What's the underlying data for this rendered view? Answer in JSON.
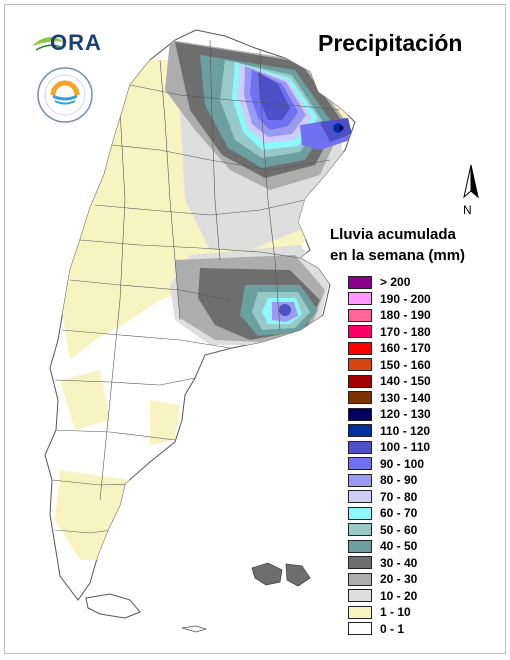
{
  "title": "Precipitación",
  "logo": {
    "text": "ORA",
    "icon": "ora-leaf-logo"
  },
  "seal": {
    "icon": "institute-seal-icon"
  },
  "north_arrow": {
    "label": "N",
    "icon": "north-arrow-icon"
  },
  "legend": {
    "title_line1": "Lluvia acumulada",
    "title_line2": "en la semana (mm)",
    "items": [
      {
        "label": "> 200",
        "color": "#8b008b"
      },
      {
        "label": "190 - 200",
        "color": "#ff99ff"
      },
      {
        "label": "180 - 190",
        "color": "#ff6699"
      },
      {
        "label": "170 - 180",
        "color": "#ff0066"
      },
      {
        "label": "160 - 170",
        "color": "#ff0000"
      },
      {
        "label": "150 - 160",
        "color": "#d94410"
      },
      {
        "label": "140 - 150",
        "color": "#a50000"
      },
      {
        "label": "130 - 140",
        "color": "#7a3300"
      },
      {
        "label": "120 - 130",
        "color": "#000060"
      },
      {
        "label": "110 - 120",
        "color": "#0030a0"
      },
      {
        "label": "100 - 110",
        "color": "#4f4fc8"
      },
      {
        "label": "90 - 100",
        "color": "#7070f0"
      },
      {
        "label": "80 - 90",
        "color": "#9a9af5"
      },
      {
        "label": "70 - 80",
        "color": "#cdcdf7"
      },
      {
        "label": "60 - 70",
        "color": "#8ef7f7"
      },
      {
        "label": "50 - 60",
        "color": "#98c9c9"
      },
      {
        "label": "40 - 50",
        "color": "#6c9f9f"
      },
      {
        "label": "30 - 40",
        "color": "#6e6e6e"
      },
      {
        "label": "20 - 30",
        "color": "#adadad"
      },
      {
        "label": "10 - 20",
        "color": "#dedede"
      },
      {
        "label": "1 - 10",
        "color": "#f8f4c2"
      },
      {
        "label": "0 - 1",
        "color": "#ffffff"
      }
    ]
  }
}
